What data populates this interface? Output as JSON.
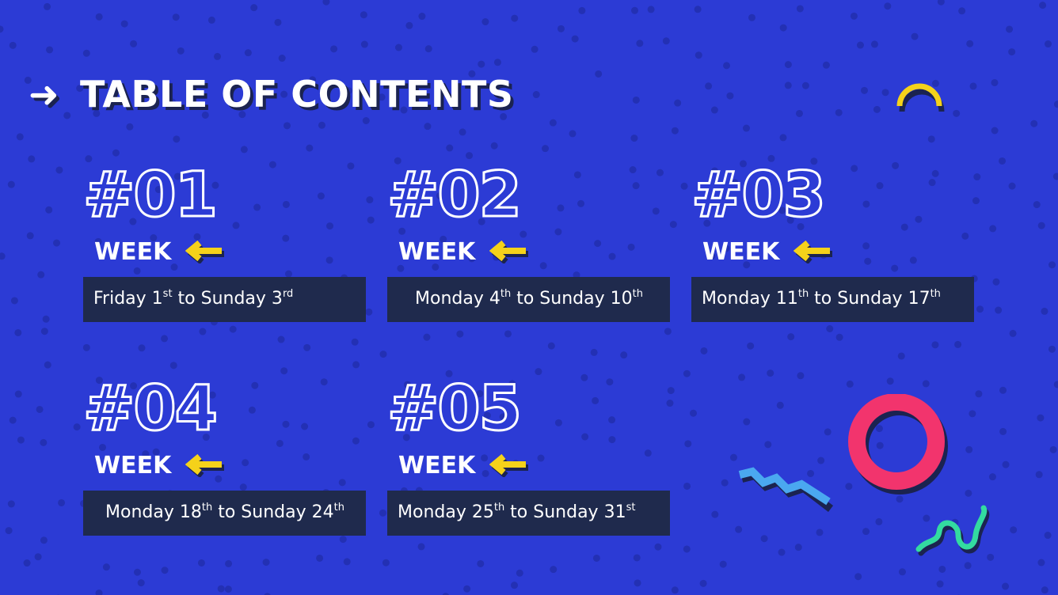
{
  "title": {
    "icon": "arrow-right-icon",
    "text": "TABLE OF CONTENTS"
  },
  "weeks": [
    {
      "number": "#01",
      "label": "WEEK",
      "from_day": "Friday 1",
      "from_sup": "st",
      "mid": " to Sunday 3",
      "to_sup": "rd",
      "align": "left"
    },
    {
      "number": "#02",
      "label": "WEEK",
      "from_day": "Monday 4",
      "from_sup": "th",
      "mid": " to Sunday 10",
      "to_sup": "th",
      "align": "center"
    },
    {
      "number": "#03",
      "label": "WEEK",
      "from_day": "Monday 11",
      "from_sup": "th",
      "mid": " to Sunday 17",
      "to_sup": "th",
      "align": "left"
    },
    {
      "number": "#04",
      "label": "WEEK",
      "from_day": "Monday 18",
      "from_sup": "th",
      "mid": " to Sunday 24",
      "to_sup": "th",
      "align": "center"
    },
    {
      "number": "#05",
      "label": "WEEK",
      "from_day": "Monday 25",
      "from_sup": "th",
      "mid": " to Sunday 31",
      "to_sup": "st",
      "align": "left"
    }
  ],
  "colors": {
    "background": "#2c3bd5",
    "box": "#1f2a4d",
    "accent_yellow": "#f5d21a",
    "pink": "#f2346d",
    "light_blue": "#4aa8f0",
    "green": "#33dba0"
  }
}
